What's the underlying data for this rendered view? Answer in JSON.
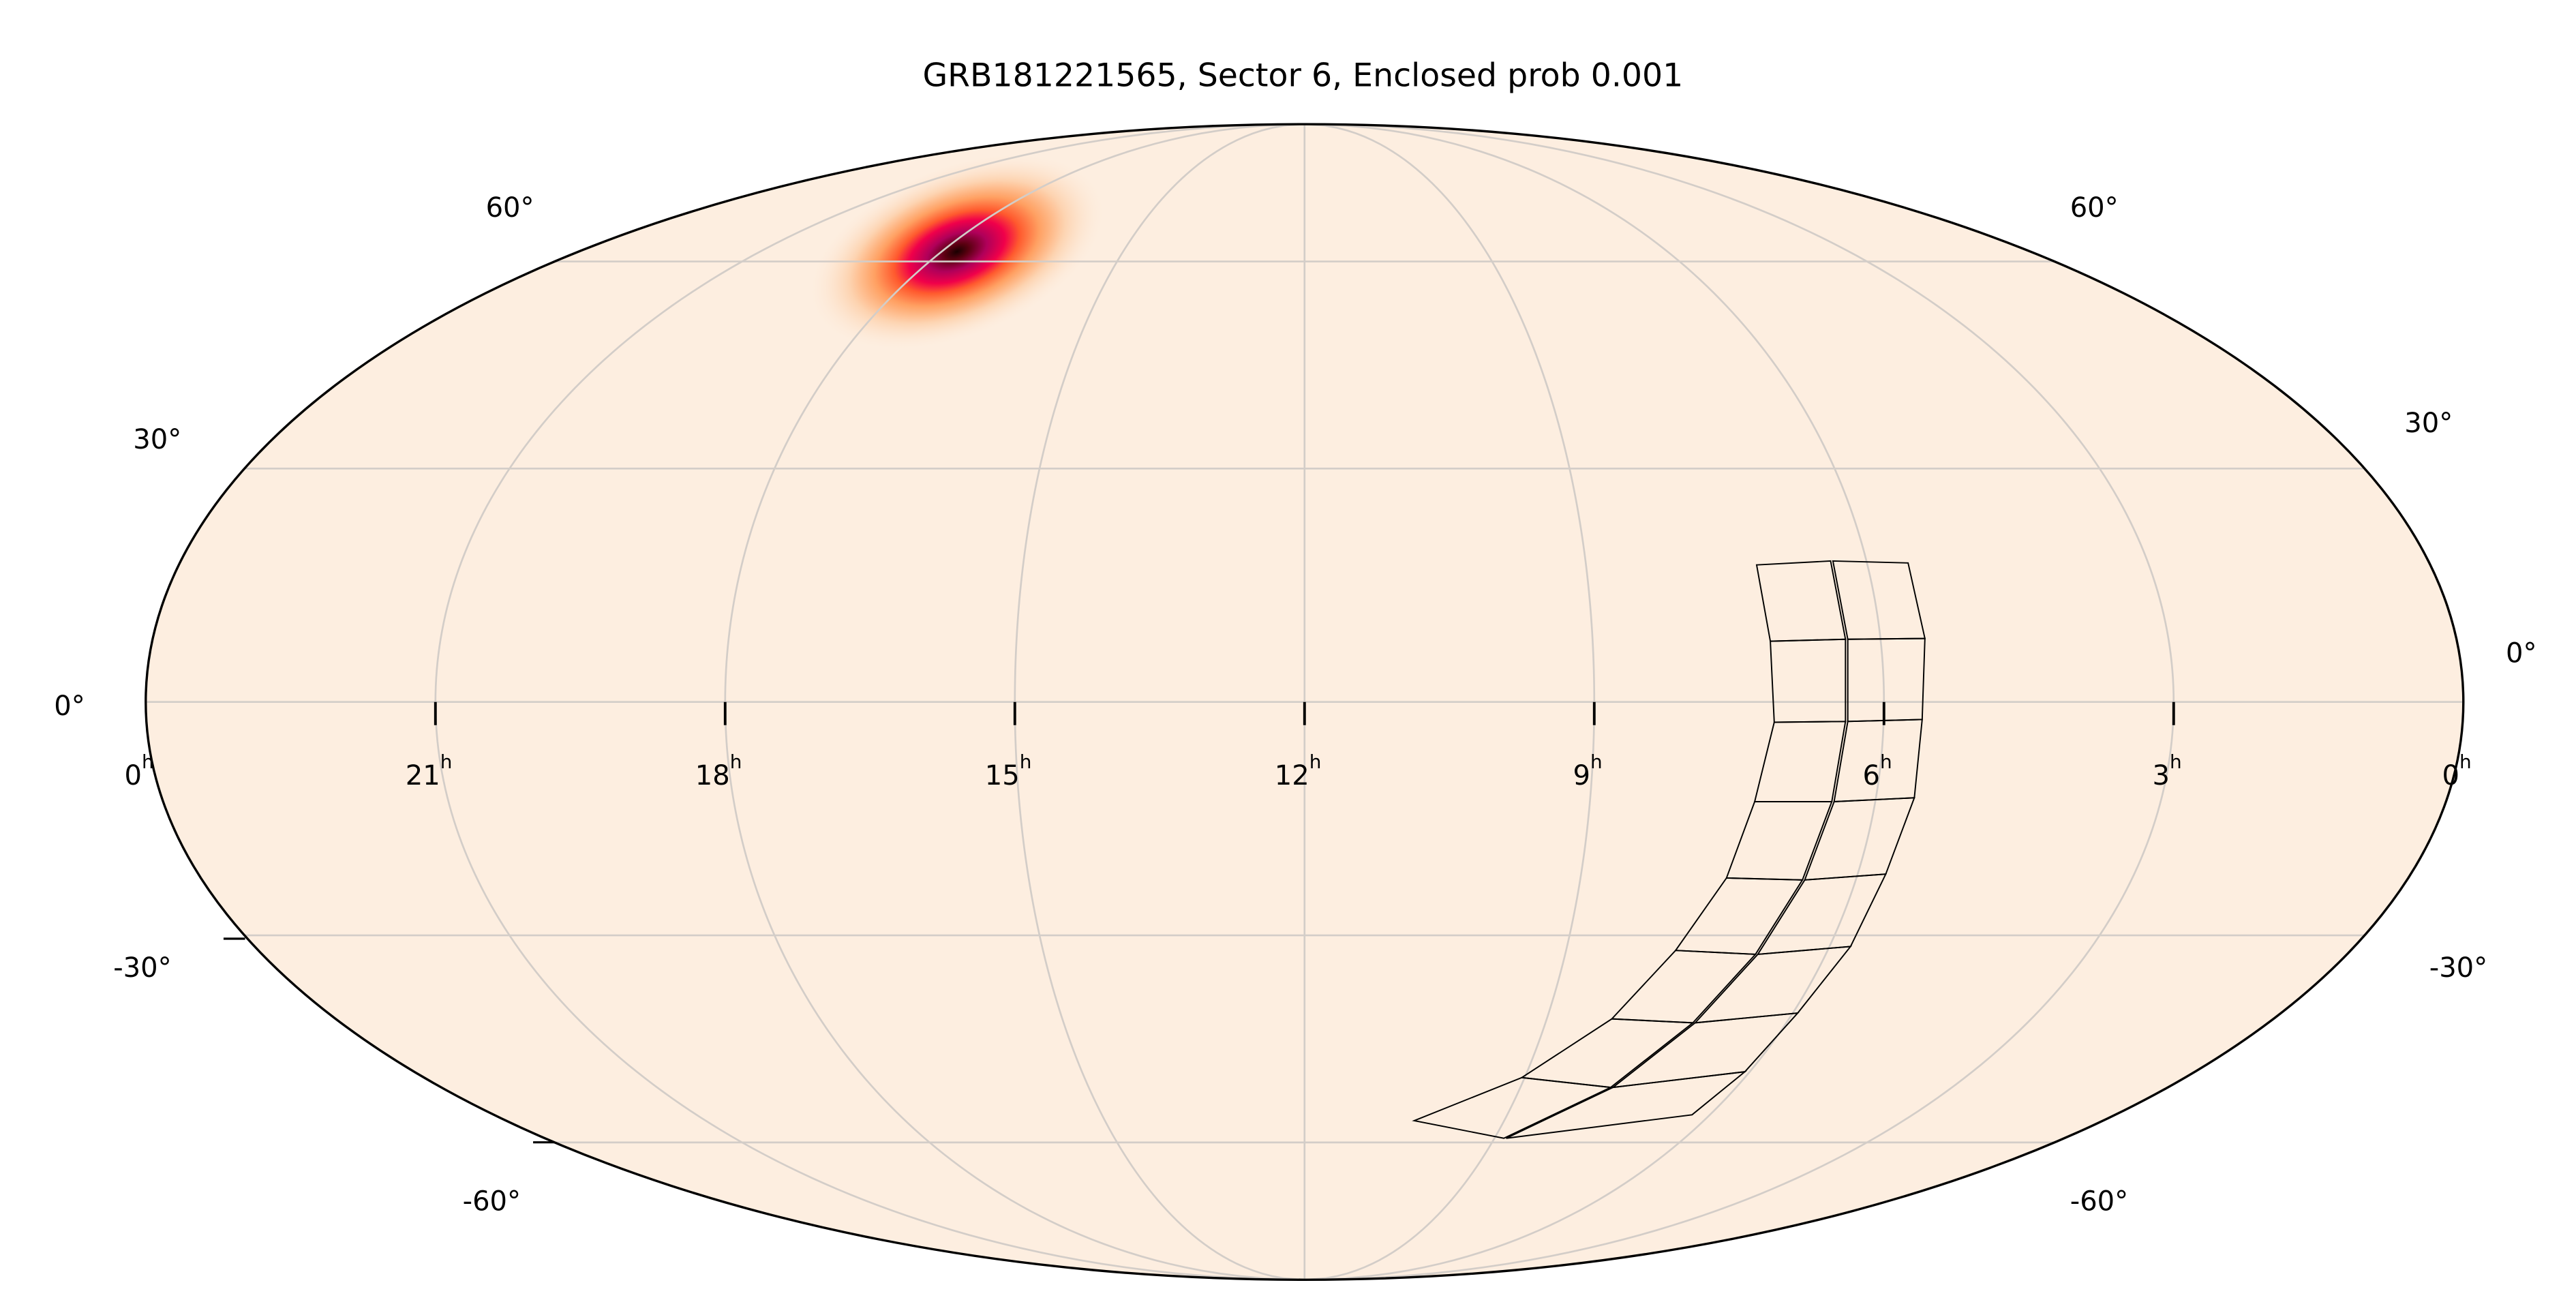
{
  "chart_data": {
    "type": "heatmap",
    "projection": "mollweide",
    "title": "GRB181221565, Sector 6, Enclosed prob 0.001",
    "ra_tick_labels": [
      {
        "hours": 24,
        "label": "0",
        "unit": "h"
      },
      {
        "hours": 21,
        "label": "21",
        "unit": "h"
      },
      {
        "hours": 18,
        "label": "18",
        "unit": "h"
      },
      {
        "hours": 15,
        "label": "15",
        "unit": "h"
      },
      {
        "hours": 12,
        "label": "12",
        "unit": "h"
      },
      {
        "hours": 9,
        "label": "9",
        "unit": "h"
      },
      {
        "hours": 6,
        "label": "6",
        "unit": "h"
      },
      {
        "hours": 3,
        "label": "3",
        "unit": "h"
      },
      {
        "hours": 0,
        "label": "0",
        "unit": "h"
      }
    ],
    "dec_tick_labels": [
      "60°",
      "30°",
      "0°",
      "-30°",
      "-60°"
    ],
    "grid": true,
    "ra_direction": "increasing to the left",
    "probability_peak": {
      "ra_hours": 17.9,
      "dec_deg": 53
    },
    "footprint": {
      "rows": 8,
      "columns": 2
    },
    "colors": {
      "background": "#fdeee0",
      "grid": "#d3cdc8",
      "colormap": [
        "#fdeee0",
        "#fdc596",
        "#ff7f3a",
        "#f52a35",
        "#e0004c",
        "#a8005a",
        "#3a0008"
      ],
      "footprint": "#000000"
    }
  }
}
